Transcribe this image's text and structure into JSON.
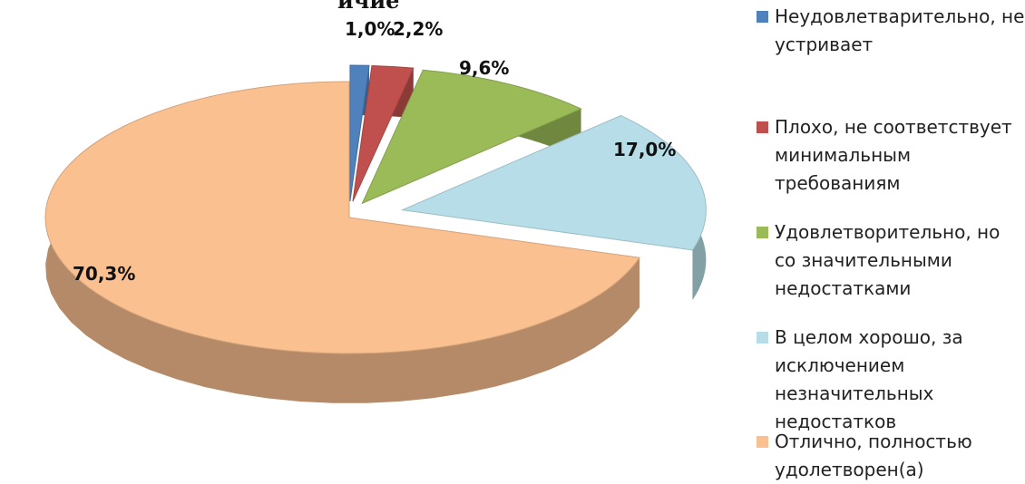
{
  "chart_data": {
    "type": "pie",
    "title_fragment": "ичие",
    "slices": [
      {
        "label": "Неудовлетварительно, не устривает",
        "value": 1.0,
        "display": "1,0%",
        "color": "#4f81bd"
      },
      {
        "label": "Плохо, не соответствует минимальным требованиям",
        "value": 2.2,
        "display": "2,2%",
        "color": "#c0504d"
      },
      {
        "label": "Удовлетворительно, но со значительными недостатками",
        "value": 9.6,
        "display": "9,6%",
        "color": "#9bbb59"
      },
      {
        "label": "В целом хорошо, за исключением незначительных недостатков",
        "value": 17.0,
        "display": "17,0%",
        "color": "#b7dee8"
      },
      {
        "label": "Отлично, полностью удолетворен(а)",
        "value": 70.3,
        "display": "70,3%",
        "color": "#fac090"
      }
    ],
    "legend_position": "right",
    "three_d": true,
    "exploded": true
  }
}
